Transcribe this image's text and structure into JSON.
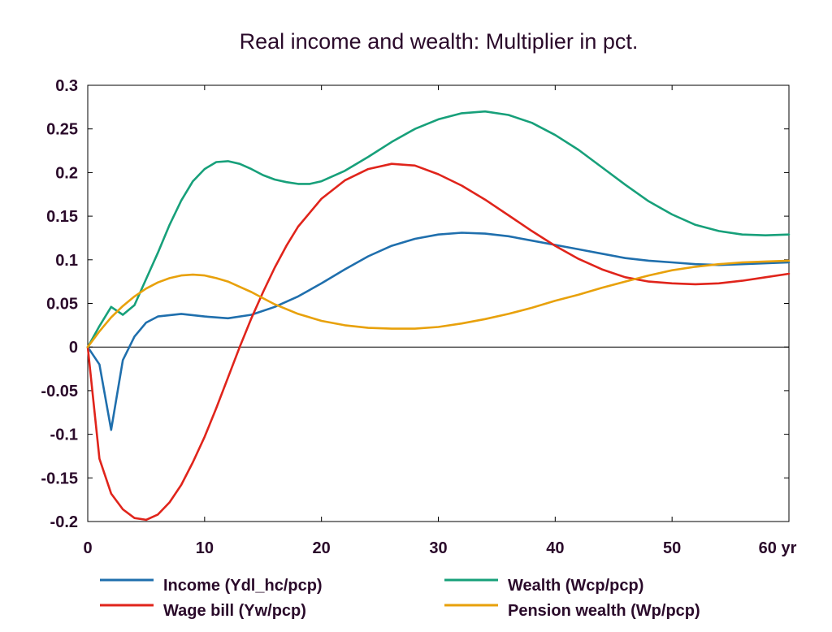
{
  "chart_data": {
    "type": "line",
    "title": "Real income and wealth: Multiplier in pct.",
    "x_unit_label": "yr",
    "xlim": [
      0,
      60
    ],
    "ylim": [
      -0.2,
      0.3
    ],
    "x_ticks": [
      0,
      10,
      20,
      30,
      40,
      50,
      60
    ],
    "x_tick_labels": [
      "0",
      "10",
      "20",
      "30",
      "40",
      "50",
      "60 yr"
    ],
    "y_ticks": [
      0.3,
      0.25,
      0.2,
      0.15,
      0.1,
      0.05,
      0,
      -0.05,
      -0.1,
      -0.15,
      -0.2
    ],
    "y_tick_labels": [
      "0.3",
      "0.25",
      "0.2",
      "0.15",
      "0.1",
      "0.05",
      "0",
      "-0.05",
      "-0.1",
      "-0.15",
      "-0.2"
    ],
    "grid": false,
    "zero_line": true,
    "legend_position": "bottom",
    "series": [
      {
        "name": "Income (Ydl_hc/pcp)",
        "color": "#1f6fad",
        "points": [
          [
            0,
            0
          ],
          [
            1,
            -0.02
          ],
          [
            2,
            -0.095
          ],
          [
            3,
            -0.015
          ],
          [
            4,
            0.012
          ],
          [
            5,
            0.028
          ],
          [
            6,
            0.035
          ],
          [
            8,
            0.038
          ],
          [
            10,
            0.035
          ],
          [
            12,
            0.033
          ],
          [
            14,
            0.037
          ],
          [
            16,
            0.046
          ],
          [
            18,
            0.058
          ],
          [
            20,
            0.073
          ],
          [
            22,
            0.089
          ],
          [
            24,
            0.104
          ],
          [
            26,
            0.116
          ],
          [
            28,
            0.124
          ],
          [
            30,
            0.129
          ],
          [
            32,
            0.131
          ],
          [
            34,
            0.13
          ],
          [
            36,
            0.127
          ],
          [
            38,
            0.122
          ],
          [
            40,
            0.117
          ],
          [
            42,
            0.112
          ],
          [
            44,
            0.107
          ],
          [
            46,
            0.102
          ],
          [
            48,
            0.099
          ],
          [
            50,
            0.097
          ],
          [
            52,
            0.095
          ],
          [
            54,
            0.094
          ],
          [
            56,
            0.095
          ],
          [
            58,
            0.096
          ],
          [
            60,
            0.097
          ]
        ]
      },
      {
        "name": "Wage bill (Yw/pcp)",
        "color": "#e0241b",
        "points": [
          [
            0,
            0
          ],
          [
            1,
            -0.128
          ],
          [
            2,
            -0.168
          ],
          [
            3,
            -0.186
          ],
          [
            4,
            -0.196
          ],
          [
            5,
            -0.198
          ],
          [
            6,
            -0.192
          ],
          [
            7,
            -0.178
          ],
          [
            8,
            -0.158
          ],
          [
            9,
            -0.132
          ],
          [
            10,
            -0.103
          ],
          [
            11,
            -0.07
          ],
          [
            12,
            -0.035
          ],
          [
            13,
            0.0
          ],
          [
            14,
            0.033
          ],
          [
            15,
            0.063
          ],
          [
            16,
            0.091
          ],
          [
            17,
            0.116
          ],
          [
            18,
            0.138
          ],
          [
            20,
            0.17
          ],
          [
            22,
            0.191
          ],
          [
            24,
            0.204
          ],
          [
            26,
            0.21
          ],
          [
            28,
            0.208
          ],
          [
            30,
            0.198
          ],
          [
            32,
            0.185
          ],
          [
            34,
            0.169
          ],
          [
            36,
            0.151
          ],
          [
            38,
            0.133
          ],
          [
            40,
            0.116
          ],
          [
            42,
            0.101
          ],
          [
            44,
            0.089
          ],
          [
            46,
            0.08
          ],
          [
            48,
            0.075
          ],
          [
            50,
            0.073
          ],
          [
            52,
            0.072
          ],
          [
            54,
            0.073
          ],
          [
            56,
            0.076
          ],
          [
            58,
            0.08
          ],
          [
            60,
            0.084
          ]
        ]
      },
      {
        "name": "Wealth (Wcp/pcp)",
        "color": "#17a07a",
        "points": [
          [
            0,
            0
          ],
          [
            1,
            0.024
          ],
          [
            2,
            0.046
          ],
          [
            3,
            0.037
          ],
          [
            4,
            0.048
          ],
          [
            5,
            0.078
          ],
          [
            6,
            0.108
          ],
          [
            7,
            0.14
          ],
          [
            8,
            0.168
          ],
          [
            9,
            0.19
          ],
          [
            10,
            0.204
          ],
          [
            11,
            0.212
          ],
          [
            12,
            0.213
          ],
          [
            13,
            0.21
          ],
          [
            14,
            0.204
          ],
          [
            15,
            0.197
          ],
          [
            16,
            0.192
          ],
          [
            17,
            0.189
          ],
          [
            18,
            0.187
          ],
          [
            19,
            0.187
          ],
          [
            20,
            0.19
          ],
          [
            22,
            0.202
          ],
          [
            24,
            0.218
          ],
          [
            26,
            0.235
          ],
          [
            28,
            0.25
          ],
          [
            30,
            0.261
          ],
          [
            32,
            0.268
          ],
          [
            34,
            0.27
          ],
          [
            36,
            0.266
          ],
          [
            38,
            0.257
          ],
          [
            40,
            0.243
          ],
          [
            42,
            0.226
          ],
          [
            44,
            0.206
          ],
          [
            46,
            0.186
          ],
          [
            48,
            0.167
          ],
          [
            50,
            0.152
          ],
          [
            52,
            0.14
          ],
          [
            54,
            0.133
          ],
          [
            56,
            0.129
          ],
          [
            58,
            0.128
          ],
          [
            60,
            0.129
          ]
        ]
      },
      {
        "name": "Pension wealth (Wp/pcp)",
        "color": "#e8a10b",
        "points": [
          [
            0,
            0
          ],
          [
            1,
            0.018
          ],
          [
            2,
            0.034
          ],
          [
            3,
            0.047
          ],
          [
            4,
            0.058
          ],
          [
            5,
            0.067
          ],
          [
            6,
            0.074
          ],
          [
            7,
            0.079
          ],
          [
            8,
            0.082
          ],
          [
            9,
            0.083
          ],
          [
            10,
            0.082
          ],
          [
            11,
            0.079
          ],
          [
            12,
            0.075
          ],
          [
            13,
            0.069
          ],
          [
            14,
            0.063
          ],
          [
            15,
            0.056
          ],
          [
            16,
            0.049
          ],
          [
            18,
            0.038
          ],
          [
            20,
            0.03
          ],
          [
            22,
            0.025
          ],
          [
            24,
            0.022
          ],
          [
            26,
            0.021
          ],
          [
            28,
            0.021
          ],
          [
            30,
            0.023
          ],
          [
            32,
            0.027
          ],
          [
            34,
            0.032
          ],
          [
            36,
            0.038
          ],
          [
            38,
            0.045
          ],
          [
            40,
            0.053
          ],
          [
            42,
            0.06
          ],
          [
            44,
            0.068
          ],
          [
            46,
            0.075
          ],
          [
            48,
            0.082
          ],
          [
            50,
            0.088
          ],
          [
            52,
            0.092
          ],
          [
            54,
            0.095
          ],
          [
            56,
            0.097
          ],
          [
            58,
            0.098
          ],
          [
            60,
            0.099
          ]
        ]
      }
    ]
  }
}
